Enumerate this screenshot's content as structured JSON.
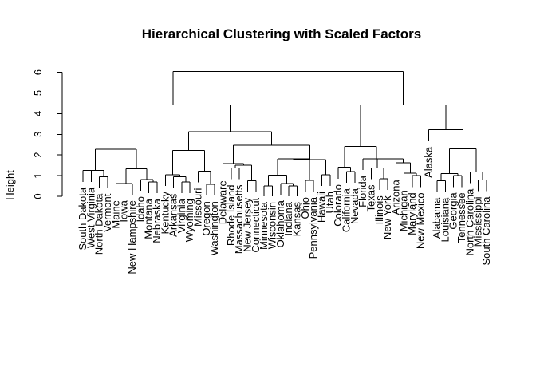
{
  "chart_data": {
    "type": "dendrogram",
    "title": "Hierarchical Clustering with Scaled Factors",
    "xlabel": "",
    "ylabel": "Height",
    "ylim": [
      0,
      6.5
    ],
    "yticks": [
      0,
      1,
      2,
      3,
      4,
      5,
      6
    ],
    "grid": false,
    "leaves": [
      "South Dakota",
      "West Virginia",
      "North Dakota",
      "Vermont",
      "Maine",
      "Iowa",
      "New Hampshire",
      "Idaho",
      "Montana",
      "Nebraska",
      "Kentucky",
      "Arkansas",
      "Virginia",
      "Wyoming",
      "Missouri",
      "Oregon",
      "Washington",
      "Delaware",
      "Rhode Island",
      "Massachusetts",
      "New Jersey",
      "Connecticut",
      "Minnesota",
      "Wisconsin",
      "Oklahoma",
      "Indiana",
      "Kansas",
      "Ohio",
      "Pennsylvania",
      "Hawaii",
      "Utah",
      "Colorado",
      "California",
      "Nevada",
      "Florida",
      "Texas",
      "Illinois",
      "New York",
      "Arizona",
      "Michigan",
      "Maryland",
      "New Mexico",
      "Alaska",
      "Alabama",
      "Louisiana",
      "Georgia",
      "Tennessee",
      "North Carolina",
      "Mississippi",
      "South Carolina"
    ],
    "merges": [
      {
        "children": [
          [
            "leaf",
            0
          ],
          [
            "leaf",
            1
          ]
        ],
        "height": 1.25
      },
      {
        "children": [
          [
            "leaf",
            2
          ],
          [
            "leaf",
            3
          ]
        ],
        "height": 0.95
      },
      {
        "children": [
          [
            "node",
            0
          ],
          [
            "node",
            1
          ]
        ],
        "height": 1.25
      },
      {
        "children": [
          [
            "leaf",
            4
          ],
          [
            "leaf",
            5
          ]
        ],
        "height": 0.62
      },
      {
        "children": [
          [
            "node",
            3
          ],
          [
            "leaf",
            6
          ]
        ],
        "height": 0.62
      },
      {
        "children": [
          [
            "leaf",
            8
          ],
          [
            "leaf",
            9
          ]
        ],
        "height": 0.7
      },
      {
        "children": [
          [
            "leaf",
            7
          ],
          [
            "node",
            5
          ]
        ],
        "height": 0.82
      },
      {
        "children": [
          [
            "node",
            4
          ],
          [
            "node",
            6
          ]
        ],
        "height": 1.33
      },
      {
        "children": [
          [
            "node",
            2
          ],
          [
            "node",
            7
          ]
        ],
        "height": 2.28
      },
      {
        "children": [
          [
            "leaf",
            12
          ],
          [
            "leaf",
            13
          ]
        ],
        "height": 0.7
      },
      {
        "children": [
          [
            "leaf",
            11
          ],
          [
            "node",
            9
          ]
        ],
        "height": 0.95
      },
      {
        "children": [
          [
            "leaf",
            10
          ],
          [
            "node",
            10
          ]
        ],
        "height": 1.05
      },
      {
        "children": [
          [
            "leaf",
            15
          ],
          [
            "leaf",
            16
          ]
        ],
        "height": 0.58
      },
      {
        "children": [
          [
            "leaf",
            14
          ],
          [
            "node",
            12
          ]
        ],
        "height": 1.22
      },
      {
        "children": [
          [
            "node",
            11
          ],
          [
            "node",
            13
          ]
        ],
        "height": 2.22
      },
      {
        "children": [
          [
            "leaf",
            18
          ],
          [
            "leaf",
            19
          ]
        ],
        "height": 1.38
      },
      {
        "children": [
          [
            "leaf",
            20
          ],
          [
            "leaf",
            21
          ]
        ],
        "height": 0.75
      },
      {
        "children": [
          [
            "node",
            15
          ],
          [
            "node",
            16
          ]
        ],
        "height": 1.5
      },
      {
        "children": [
          [
            "leaf",
            17
          ],
          [
            "node",
            17
          ]
        ],
        "height": 1.58
      },
      {
        "children": [
          [
            "leaf",
            22
          ],
          [
            "leaf",
            23
          ]
        ],
        "height": 0.5
      },
      {
        "children": [
          [
            "leaf",
            25
          ],
          [
            "leaf",
            26
          ]
        ],
        "height": 0.5
      },
      {
        "children": [
          [
            "leaf",
            24
          ],
          [
            "node",
            20
          ]
        ],
        "height": 0.62
      },
      {
        "children": [
          [
            "node",
            19
          ],
          [
            "node",
            21
          ]
        ],
        "height": 1.02
      },
      {
        "children": [
          [
            "leaf",
            27
          ],
          [
            "leaf",
            28
          ]
        ],
        "height": 0.78
      },
      {
        "children": [
          [
            "node",
            22
          ],
          [
            "node",
            23
          ]
        ],
        "height": 1.82
      },
      {
        "children": [
          [
            "leaf",
            29
          ],
          [
            "leaf",
            30
          ]
        ],
        "height": 1.05
      },
      {
        "children": [
          [
            "node",
            24
          ],
          [
            "node",
            25
          ]
        ],
        "height": 1.78
      },
      {
        "children": [
          [
            "node",
            26
          ],
          [
            "node",
            18
          ]
        ],
        "height": 2.48
      },
      {
        "children": [
          [
            "node",
            14
          ],
          [
            "node",
            27
          ]
        ],
        "height": 3.12
      },
      {
        "children": [
          [
            "node",
            8
          ],
          [
            "node",
            28
          ]
        ],
        "height": 4.42
      },
      {
        "children": [
          [
            "leaf",
            32
          ],
          [
            "leaf",
            33
          ]
        ],
        "height": 1.2
      },
      {
        "children": [
          [
            "leaf",
            31
          ],
          [
            "node",
            30
          ]
        ],
        "height": 1.4
      },
      {
        "children": [
          [
            "leaf",
            36
          ],
          [
            "leaf",
            37
          ]
        ],
        "height": 0.85
      },
      {
        "children": [
          [
            "leaf",
            35
          ],
          [
            "node",
            32
          ]
        ],
        "height": 1.38
      },
      {
        "children": [
          [
            "leaf",
            40
          ],
          [
            "leaf",
            41
          ]
        ],
        "height": 1.0
      },
      {
        "children": [
          [
            "leaf",
            39
          ],
          [
            "node",
            34
          ]
        ],
        "height": 1.12
      },
      {
        "children": [
          [
            "leaf",
            38
          ],
          [
            "node",
            35
          ]
        ],
        "height": 1.62
      },
      {
        "children": [
          [
            "node",
            33
          ],
          [
            "node",
            36
          ]
        ],
        "height": 1.82
      },
      {
        "children": [
          [
            "leaf",
            34
          ],
          [
            "node",
            37
          ]
        ],
        "height": 1.82
      },
      {
        "children": [
          [
            "node",
            31
          ],
          [
            "node",
            38
          ]
        ],
        "height": 2.42
      },
      {
        "children": [
          [
            "leaf",
            43
          ],
          [
            "leaf",
            44
          ]
        ],
        "height": 0.75
      },
      {
        "children": [
          [
            "leaf",
            45
          ],
          [
            "leaf",
            46
          ]
        ],
        "height": 1.0
      },
      {
        "children": [
          [
            "node",
            40
          ],
          [
            "node",
            41
          ]
        ],
        "height": 1.1
      },
      {
        "children": [
          [
            "leaf",
            48
          ],
          [
            "leaf",
            49
          ]
        ],
        "height": 0.8
      },
      {
        "children": [
          [
            "leaf",
            47
          ],
          [
            "node",
            43
          ]
        ],
        "height": 1.18
      },
      {
        "children": [
          [
            "node",
            42
          ],
          [
            "node",
            44
          ]
        ],
        "height": 2.3
      },
      {
        "children": [
          [
            "leaf",
            42
          ],
          [
            "node",
            45
          ]
        ],
        "height": 3.22
      },
      {
        "children": [
          [
            "node",
            39
          ],
          [
            "node",
            46
          ]
        ],
        "height": 4.42
      },
      {
        "children": [
          [
            "node",
            29
          ],
          [
            "node",
            47
          ]
        ],
        "height": 6.05
      }
    ]
  }
}
